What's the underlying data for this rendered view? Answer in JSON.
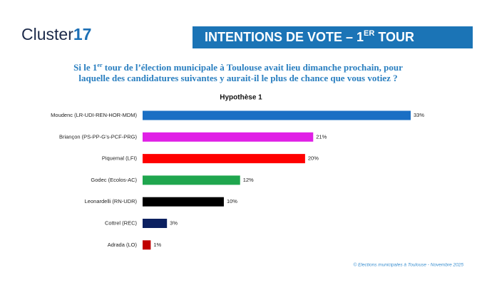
{
  "logo": {
    "text": "Cluster",
    "number": "17"
  },
  "header": {
    "title_parts": [
      "INTENTIONS DE VOTE – 1",
      "ER",
      " TOUR"
    ]
  },
  "question": {
    "line1_parts": [
      "Si le 1",
      "er",
      " tour de l’élection municipale à Toulouse avait lieu dimanche prochain, pour"
    ],
    "line2": "laquelle des candidatures suivantes y aurait-il le plus de chance que vous votiez ?"
  },
  "chart_data": {
    "type": "bar",
    "orientation": "horizontal",
    "title": "Hypothèse 1",
    "categories": [
      "Moudenc (LR-UDI-REN-HOR-MDM)",
      "Briançon (PS-PP-G’s-PCF-PRG)",
      "Piquemal (LFI)",
      "Godec (Ecolos-AC)",
      "Leonardelli (RN-UDR)",
      "Cottrel (REC)",
      "Adrada (LO)"
    ],
    "values": [
      33,
      21,
      20,
      12,
      10,
      3,
      1
    ],
    "value_labels": [
      "33%",
      "21%",
      "20%",
      "12%",
      "10%",
      "3%",
      "1%"
    ],
    "colors": [
      "#1a6fc4",
      "#e020e6",
      "#ff0000",
      "#1fa64e",
      "#000000",
      "#0b2060",
      "#c00000"
    ]
  },
  "source": "© Elections municipales à Toulouse - Novembre 2025"
}
